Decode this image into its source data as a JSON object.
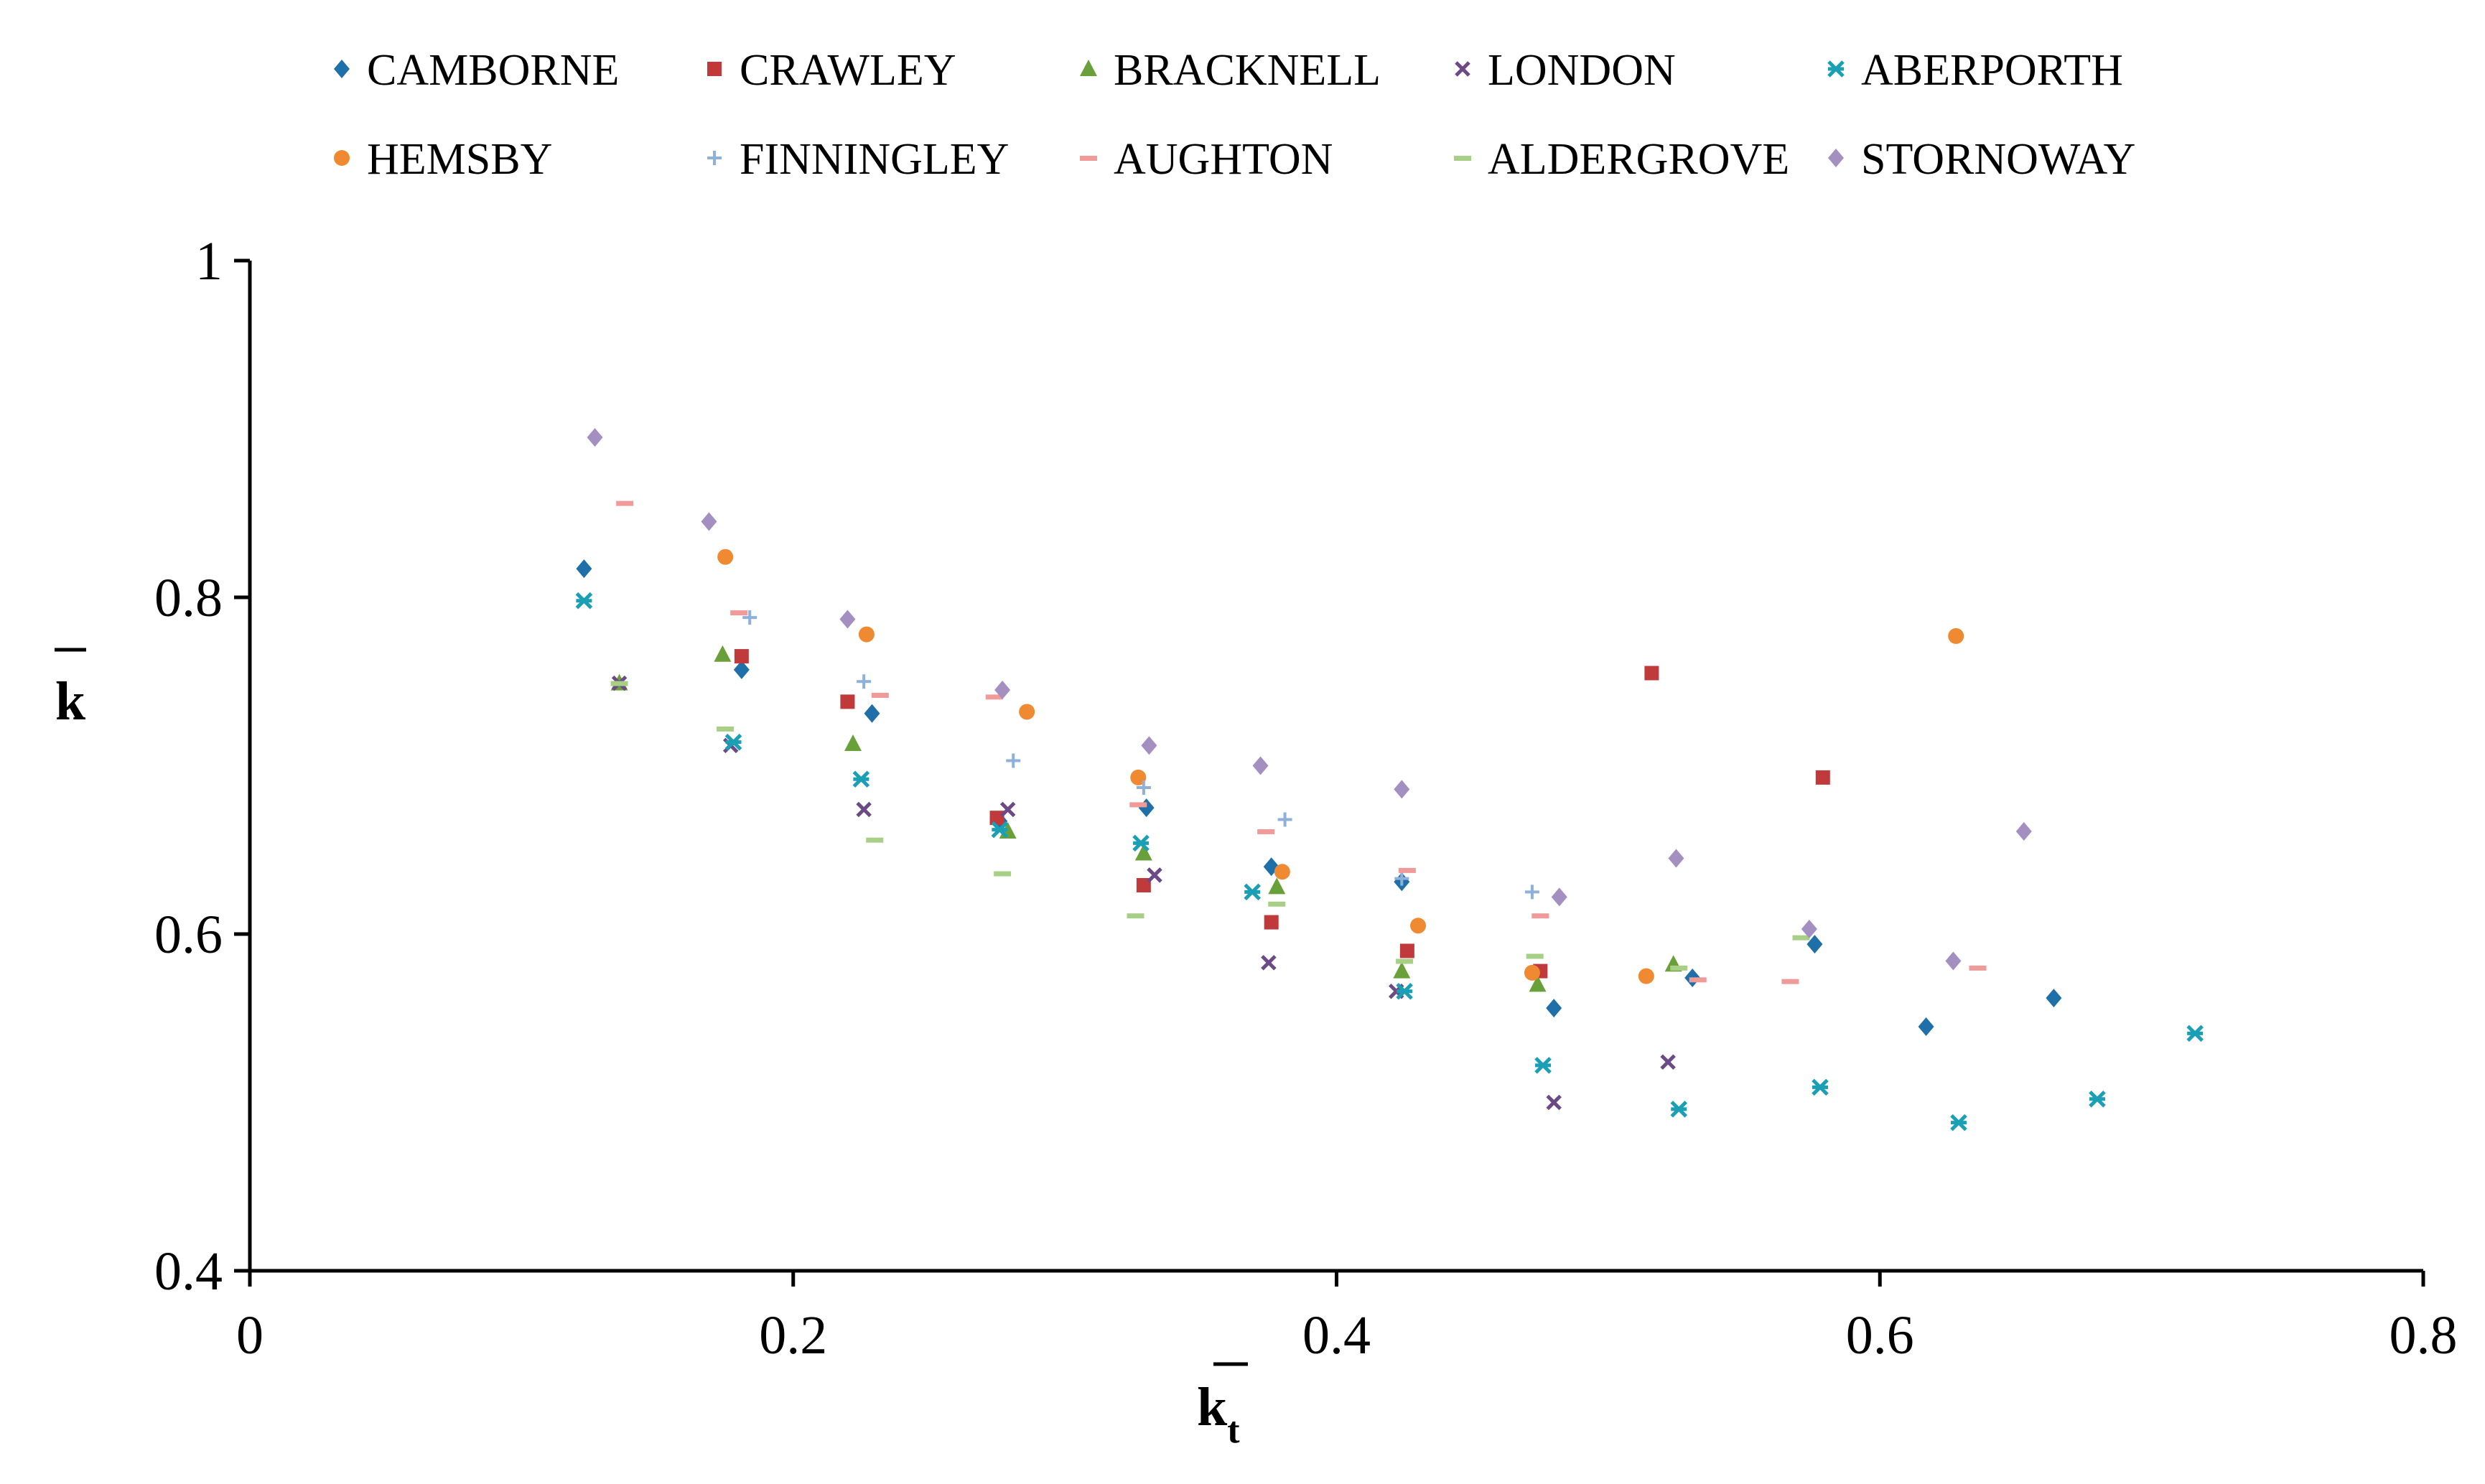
{
  "chart_data": {
    "type": "scatter",
    "xlabel": "k",
    "xlabel_sub": "t",
    "ylabel": "k",
    "xlim": [
      0,
      0.8
    ],
    "ylim": [
      0.4,
      1.0
    ],
    "x_ticks": [
      "0",
      "0.2",
      "0.4",
      "0.6",
      "0.8"
    ],
    "y_ticks": [
      "0.4",
      "0.6",
      "0.8",
      "1"
    ],
    "grid": false,
    "legend_position": "top",
    "series": [
      {
        "name": "CAMBORNE",
        "marker": "diamond",
        "color": "#1f6fa8",
        "x": [
          0.123,
          0.181,
          0.229,
          0.276,
          0.33,
          0.376,
          0.424,
          0.48,
          0.531,
          0.576,
          0.617,
          0.664
        ],
        "y": [
          0.817,
          0.757,
          0.731,
          0.667,
          0.675,
          0.64,
          0.631,
          0.556,
          0.574,
          0.594,
          0.545,
          0.562
        ]
      },
      {
        "name": "CRAWLEY",
        "marker": "square",
        "color": "#c0393b",
        "x": [
          0.181,
          0.22,
          0.275,
          0.329,
          0.376,
          0.426,
          0.475,
          0.516,
          0.579
        ],
        "y": [
          0.765,
          0.738,
          0.669,
          0.629,
          0.607,
          0.59,
          0.578,
          0.755,
          0.693
        ]
      },
      {
        "name": "BRACKNELL",
        "marker": "triangle",
        "color": "#6aa03a",
        "x": [
          0.136,
          0.174,
          0.222,
          0.279,
          0.329,
          0.378,
          0.424,
          0.474,
          0.524
        ],
        "y": [
          0.749,
          0.766,
          0.713,
          0.661,
          0.648,
          0.628,
          0.578,
          0.57,
          0.582
        ]
      },
      {
        "name": "LONDON",
        "marker": "x",
        "color": "#6b4a85",
        "x": [
          0.136,
          0.177,
          0.226,
          0.279,
          0.333,
          0.375,
          0.422,
          0.48,
          0.522
        ],
        "y": [
          0.749,
          0.712,
          0.674,
          0.674,
          0.635,
          0.583,
          0.566,
          0.5,
          0.524
        ]
      },
      {
        "name": "ABERPORTH",
        "marker": "star",
        "color": "#1a9fb5",
        "x": [
          0.123,
          0.178,
          0.225,
          0.276,
          0.328,
          0.369,
          0.425,
          0.476,
          0.526,
          0.578,
          0.629,
          0.68,
          0.716
        ],
        "y": [
          0.798,
          0.714,
          0.692,
          0.662,
          0.654,
          0.625,
          0.566,
          0.522,
          0.496,
          0.509,
          0.488,
          0.502,
          0.541
        ]
      },
      {
        "name": "HEMSBY",
        "marker": "circle",
        "color": "#ef8a32",
        "x": [
          0.175,
          0.227,
          0.286,
          0.327,
          0.38,
          0.43,
          0.472,
          0.514,
          0.628
        ],
        "y": [
          0.824,
          0.778,
          0.732,
          0.693,
          0.637,
          0.605,
          0.577,
          0.575,
          0.777
        ]
      },
      {
        "name": "FINNINGLEY",
        "marker": "plus",
        "color": "#8fb0d8",
        "x": [
          0.184,
          0.226,
          0.281,
          0.329,
          0.381,
          0.424,
          0.472
        ],
        "y": [
          0.788,
          0.75,
          0.703,
          0.687,
          0.668,
          0.633,
          0.625
        ]
      },
      {
        "name": "AUGHTON",
        "marker": "dash",
        "color": "#f09a9a",
        "x": [
          0.138,
          0.18,
          0.232,
          0.274,
          0.327,
          0.374,
          0.426,
          0.475,
          0.533,
          0.567,
          0.636
        ],
        "y": [
          0.856,
          0.791,
          0.742,
          0.741,
          0.677,
          0.661,
          0.638,
          0.611,
          0.573,
          0.572,
          0.58
        ]
      },
      {
        "name": "ALDERGROVE",
        "marker": "dash",
        "color": "#a8cf86",
        "x": [
          0.136,
          0.175,
          0.23,
          0.277,
          0.326,
          0.378,
          0.425,
          0.473,
          0.526,
          0.571
        ],
        "y": [
          0.749,
          0.722,
          0.656,
          0.636,
          0.611,
          0.618,
          0.584,
          0.587,
          0.58,
          0.598
        ]
      },
      {
        "name": "STORNOWAY",
        "marker": "diamond",
        "color": "#a48fc1",
        "x": [
          0.127,
          0.169,
          0.22,
          0.277,
          0.331,
          0.372,
          0.424,
          0.482,
          0.525,
          0.574,
          0.627,
          0.653
        ],
        "y": [
          0.895,
          0.845,
          0.787,
          0.745,
          0.712,
          0.7,
          0.686,
          0.622,
          0.645,
          0.603,
          0.584,
          0.661
        ]
      }
    ]
  }
}
